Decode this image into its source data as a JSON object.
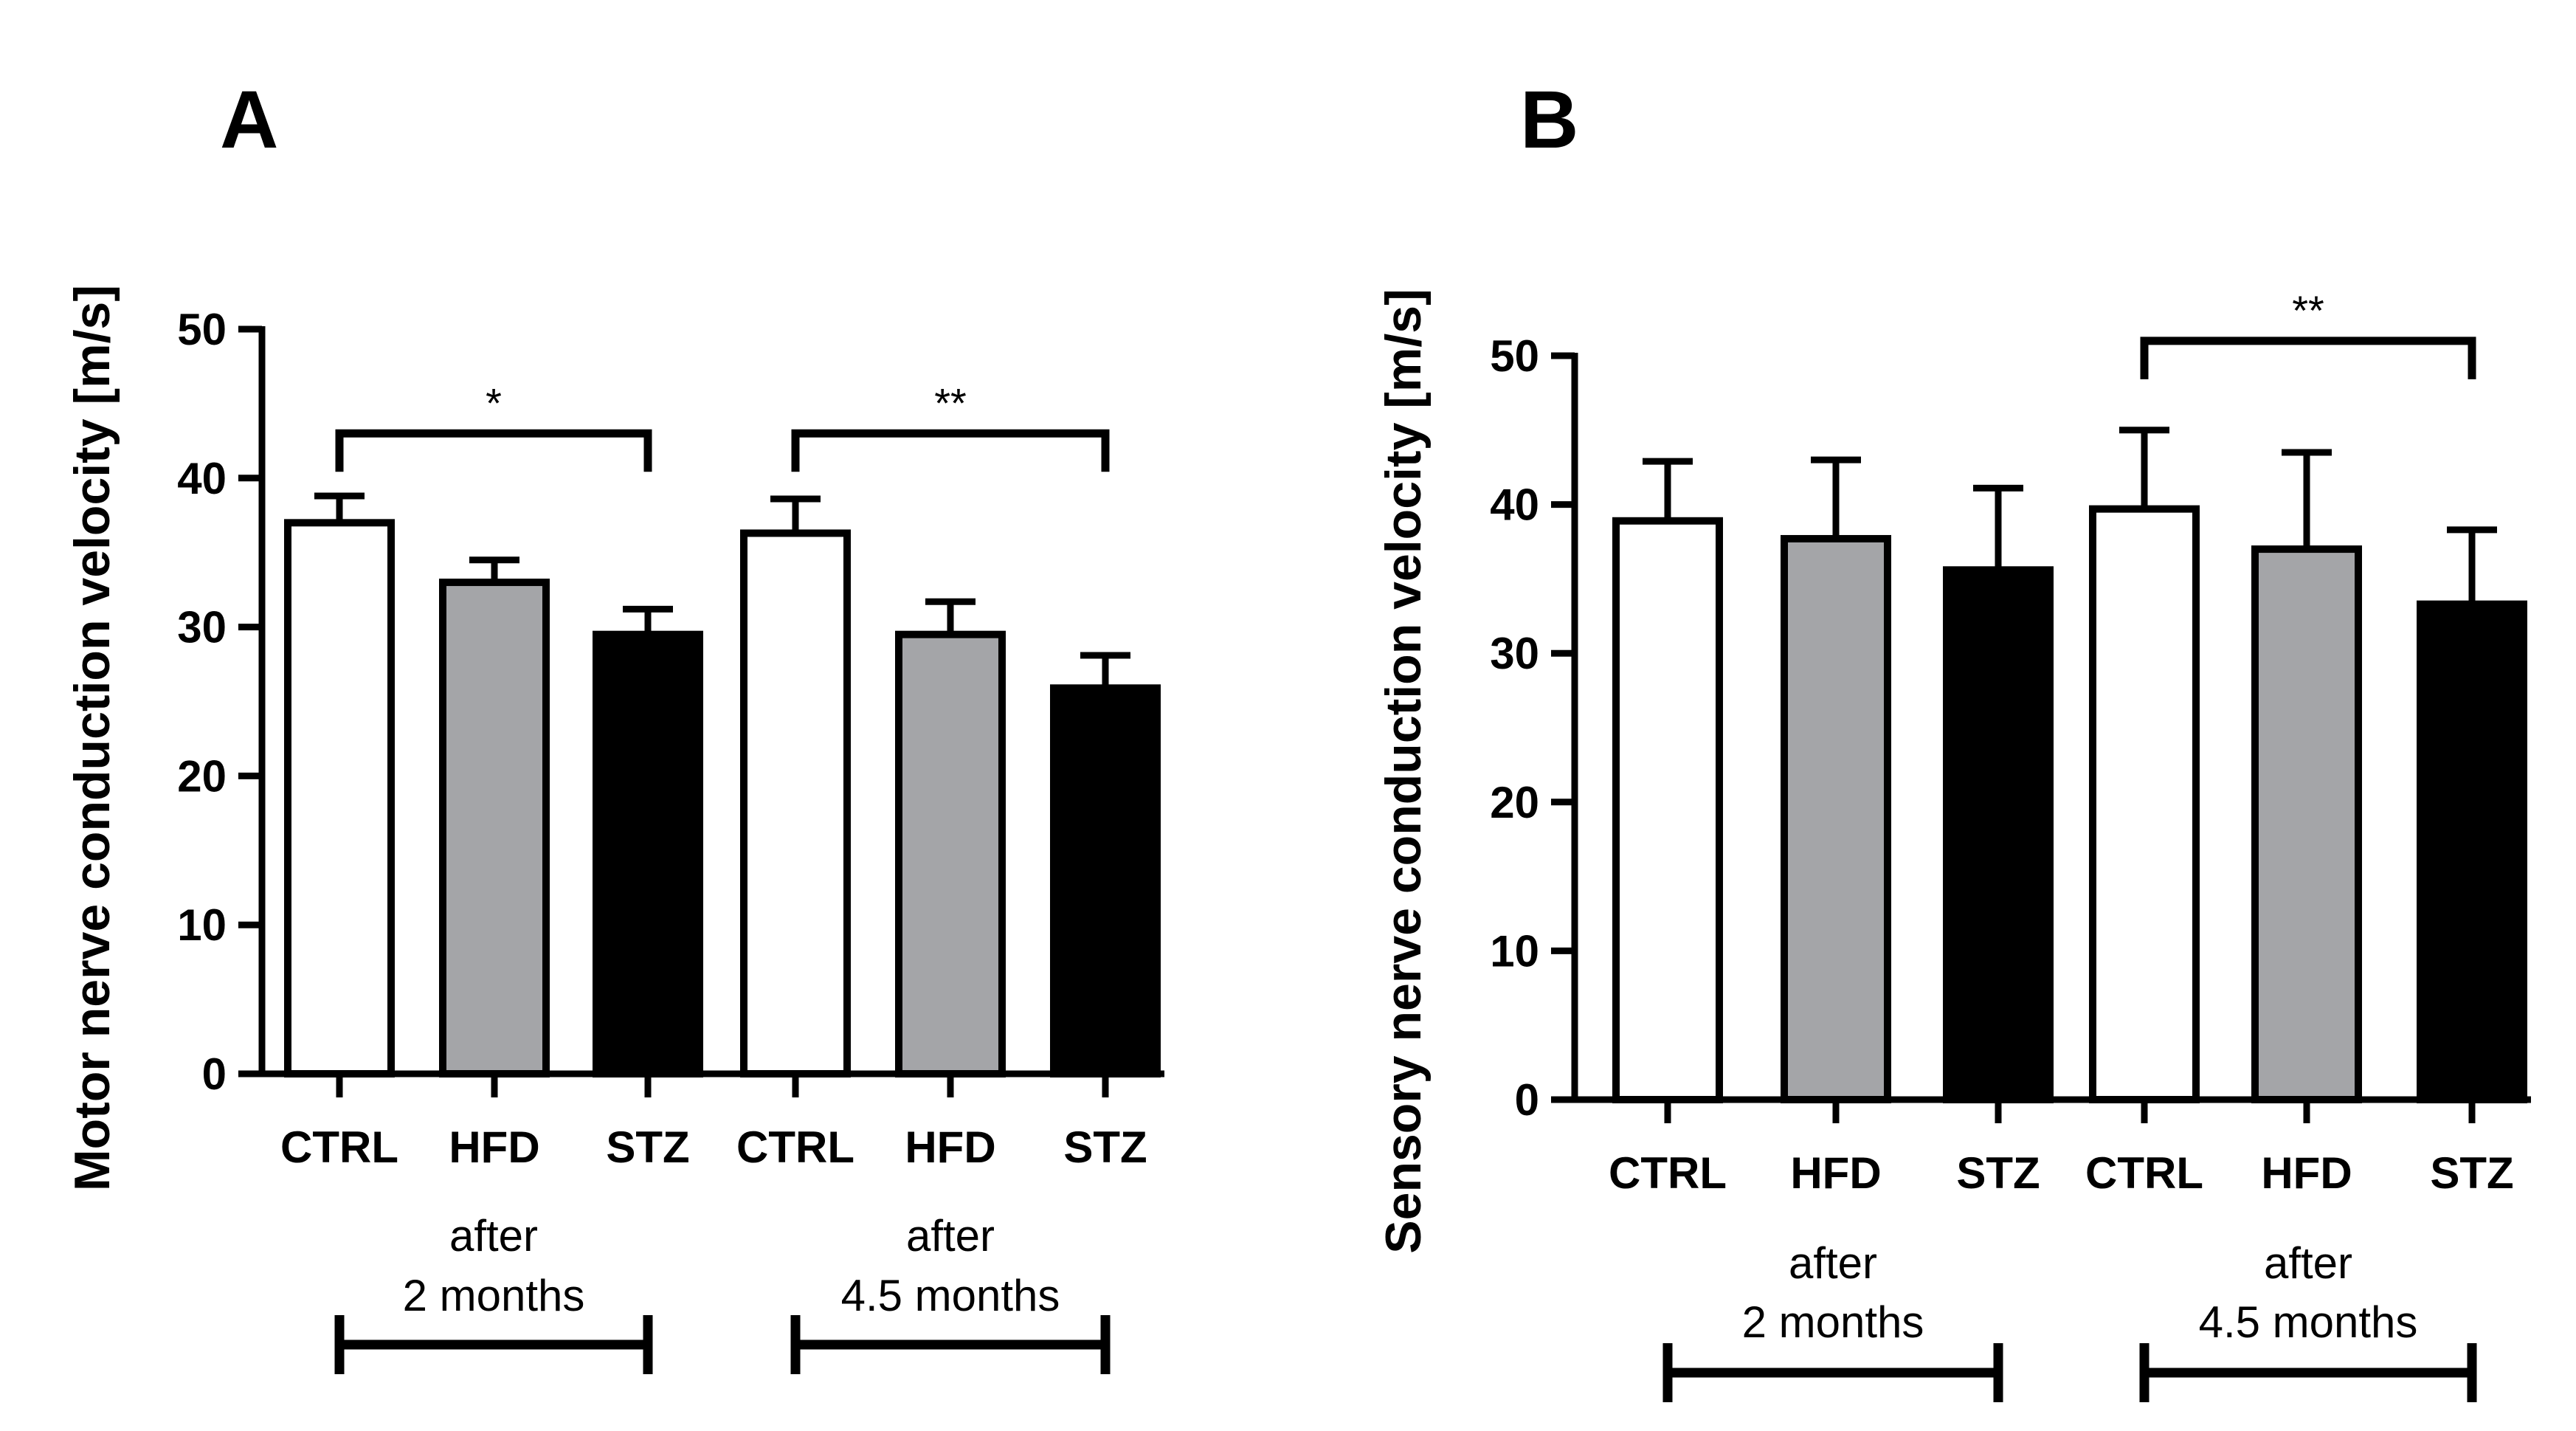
{
  "colors": {
    "CTRL": "#ffffff",
    "HFD": "#a4a5a8",
    "STZ": "#000000",
    "stroke": "#000000"
  },
  "chart_data": [
    {
      "panel": "A",
      "type": "bar",
      "ylabel": "Motor nerve conduction velocity [m/s]",
      "ylim": [
        0,
        50
      ],
      "yticks": [
        "0",
        "10",
        "20",
        "30",
        "40",
        "50"
      ],
      "categories": [
        "CTRL",
        "HFD",
        "STZ",
        "CTRL",
        "HFD",
        "STZ"
      ],
      "fill_keys": [
        "CTRL",
        "HFD",
        "STZ",
        "CTRL",
        "HFD",
        "STZ"
      ],
      "values": [
        37.0,
        33.0,
        29.5,
        36.3,
        29.5,
        25.9
      ],
      "errors": [
        1.8,
        1.5,
        1.7,
        2.3,
        2.2,
        2.2
      ],
      "groups": [
        {
          "line1": "after",
          "line2": "2 months",
          "start": 0,
          "end": 2
        },
        {
          "line1": "after",
          "line2": "4.5 months",
          "start": 3,
          "end": 5
        }
      ],
      "significance": [
        {
          "from": 0,
          "to": 2,
          "y": 43,
          "label": "*"
        },
        {
          "from": 3,
          "to": 5,
          "y": 43,
          "label": "**"
        }
      ]
    },
    {
      "panel": "B",
      "type": "bar",
      "ylabel": "Sensory nerve conduction velocity [m/s]",
      "ylim": [
        0,
        50
      ],
      "yticks": [
        "0",
        "10",
        "20",
        "30",
        "40",
        "50"
      ],
      "categories": [
        "CTRL",
        "HFD",
        "STZ",
        "CTRL",
        "HFD",
        "STZ"
      ],
      "fill_keys": [
        "CTRL",
        "HFD",
        "STZ",
        "CTRL",
        "HFD",
        "STZ"
      ],
      "values": [
        38.9,
        37.7,
        35.6,
        39.7,
        37.0,
        33.3
      ],
      "errors": [
        4.0,
        5.3,
        5.5,
        5.3,
        6.5,
        5.0
      ],
      "groups": [
        {
          "line1": "after",
          "line2": "2 months",
          "start": 0,
          "end": 2
        },
        {
          "line1": "after",
          "line2": "4.5 months",
          "start": 3,
          "end": 5
        }
      ],
      "significance": [
        {
          "from": 3,
          "to": 5,
          "y": 51,
          "label": "**"
        }
      ]
    }
  ]
}
